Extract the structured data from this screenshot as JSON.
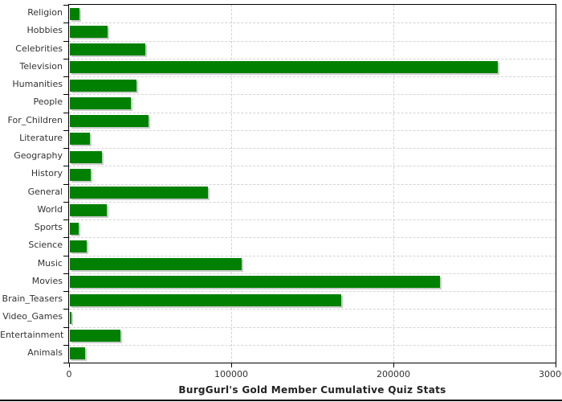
{
  "chart_data": {
    "type": "bar",
    "orientation": "horizontal",
    "title": "BurgGurl's Gold Member Cumulative Quiz Stats",
    "xlabel": "",
    "ylabel": "",
    "categories": [
      "Religion",
      "Hobbies",
      "Celebrities",
      "Television",
      "Humanities",
      "People",
      "For_Children",
      "Literature",
      "Geography",
      "History",
      "General",
      "World",
      "Sports",
      "Science",
      "Music",
      "Movies",
      "Brain_Teasers",
      "Video_Games",
      "Entertainment",
      "Animals"
    ],
    "values": [
      6000,
      23500,
      46500,
      264000,
      41000,
      37500,
      48400,
      12400,
      19800,
      12800,
      85000,
      22700,
      5400,
      10400,
      105800,
      228000,
      167500,
      1200,
      31000,
      9400
    ],
    "xlim": [
      0,
      300000
    ],
    "x_ticks": [
      0,
      100000,
      200000,
      300000
    ],
    "x_tick_labels": [
      "0",
      "100000",
      "200000",
      "300000"
    ],
    "grid": true,
    "legend": false,
    "colors": {
      "bar": "#008000",
      "bar_shadow": "#cccccc",
      "gridline": "#d3d3d3",
      "axis": "#000000",
      "label": "#333333",
      "title": "#222222"
    }
  }
}
